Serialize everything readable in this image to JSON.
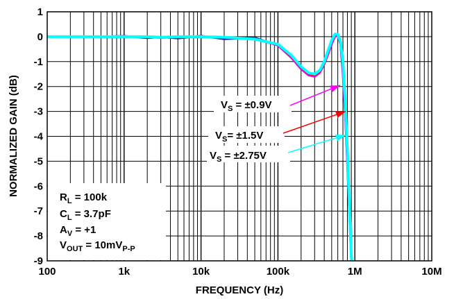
{
  "chart_data": {
    "type": "line",
    "xlabel": "FREQUENCY (Hz)",
    "ylabel": "NORMALIZED GAIN (dB)",
    "x_scale": "log",
    "xlim": [
      100,
      10000000
    ],
    "ylim": [
      -9,
      1
    ],
    "x_ticks": [
      {
        "value": 100,
        "label": "100"
      },
      {
        "value": 1000,
        "label": "1k"
      },
      {
        "value": 10000,
        "label": "10k"
      },
      {
        "value": 100000,
        "label": "100k"
      },
      {
        "value": 1000000,
        "label": "1M"
      },
      {
        "value": 10000000,
        "label": "10M"
      }
    ],
    "y_ticks": [
      1,
      0,
      -1,
      -2,
      -3,
      -4,
      -5,
      -6,
      -7,
      -8,
      -9
    ],
    "grid": true,
    "conditions": [
      {
        "main": "R",
        "sub": "L",
        "rest": " = 100k"
      },
      {
        "main": "C",
        "sub": "L",
        "rest": " = 3.7pF"
      },
      {
        "main": "A",
        "sub": "V",
        "rest": " = +1"
      },
      {
        "main": "V",
        "sub": "OUT",
        "rest": " = 10mV",
        "sub2": "P-P"
      }
    ],
    "series": [
      {
        "name": "VS = ±0.9V",
        "label": {
          "main": "V",
          "sub": "S",
          "rest": " = ±0.9V"
        },
        "color": "#ff00ff",
        "x": [
          100,
          200,
          500,
          1000,
          2000,
          3000,
          5000,
          10000,
          20000,
          50000,
          100000,
          150000,
          200000,
          250000,
          300000,
          350000,
          400000,
          450000,
          500000,
          550000,
          600000,
          650000,
          700000,
          750000,
          800000,
          850000,
          900000,
          950000
        ],
        "y": [
          0,
          0,
          0,
          0,
          -0.02,
          -0.05,
          -0.02,
          -0.02,
          -0.04,
          -0.1,
          -0.35,
          -0.85,
          -1.3,
          -1.55,
          -1.6,
          -1.45,
          -1.1,
          -0.7,
          -0.3,
          0,
          0.05,
          -0.3,
          -1.5,
          -3.2,
          -5.2,
          -7.2,
          -9,
          -9.5
        ]
      },
      {
        "name": "VS = ±1.5V",
        "label": {
          "main": "V",
          "sub": "S",
          "rest": "= ±1.5V"
        },
        "color": "#ff0000",
        "x": [
          100,
          200,
          500,
          1000,
          2000,
          3000,
          5000,
          10000,
          20000,
          50000,
          100000,
          150000,
          200000,
          250000,
          300000,
          350000,
          400000,
          450000,
          500000,
          550000,
          600000,
          650000,
          700000,
          750000,
          800000,
          850000,
          900000,
          950000
        ],
        "y": [
          0,
          0,
          0,
          0,
          -0.02,
          -0.04,
          -0.02,
          -0.02,
          -0.04,
          -0.1,
          -0.33,
          -0.8,
          -1.25,
          -1.5,
          -1.55,
          -1.4,
          -1.05,
          -0.6,
          -0.2,
          0.05,
          0.08,
          -0.25,
          -1.2,
          -2.9,
          -4.9,
          -7,
          -8.9,
          -9.5
        ]
      },
      {
        "name": "VS = ±2.75V",
        "label": {
          "main": "V",
          "sub": "S",
          "rest": " = ±2.75V"
        },
        "color": "#00ffff",
        "x": [
          100,
          200,
          500,
          1000,
          2000,
          3000,
          5000,
          10000,
          20000,
          50000,
          100000,
          150000,
          200000,
          250000,
          300000,
          350000,
          400000,
          450000,
          500000,
          550000,
          600000,
          650000,
          700000,
          750000,
          800000,
          850000,
          900000,
          950000
        ],
        "y": [
          0,
          0,
          0,
          0,
          0,
          -0.02,
          0,
          0,
          -0.02,
          -0.1,
          -0.3,
          -0.75,
          -1.2,
          -1.45,
          -1.5,
          -1.35,
          -1.0,
          -0.55,
          -0.15,
          0.1,
          0.1,
          -0.2,
          -1.0,
          -2.6,
          -4.6,
          -6.8,
          -8.8,
          -9.5
        ]
      }
    ],
    "ripple_series_color": "#1c2ba0"
  }
}
